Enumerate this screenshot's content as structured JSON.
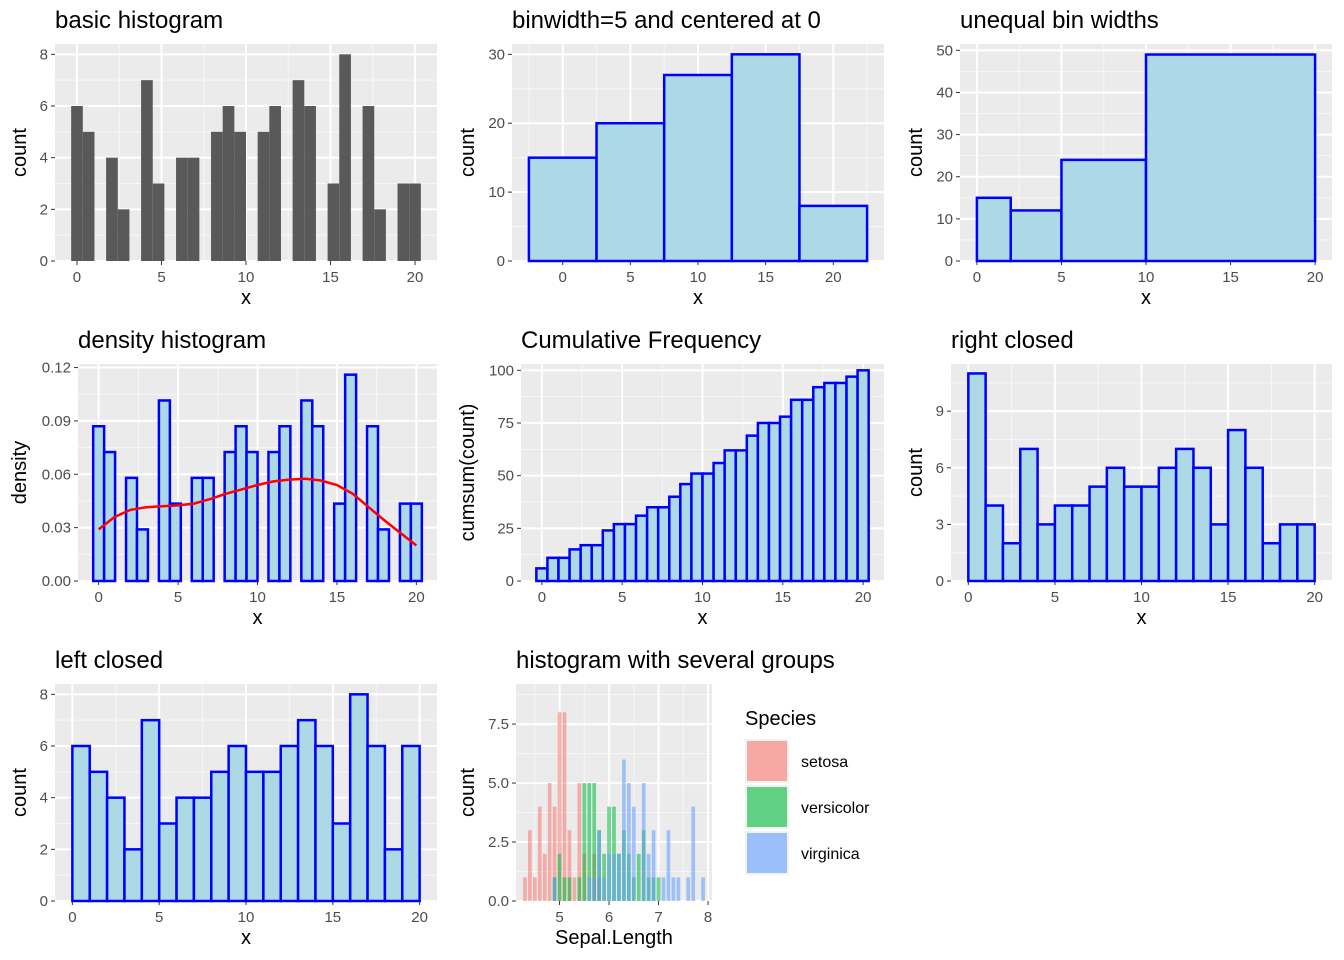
{
  "chart_data": [
    {
      "id": "basic",
      "type": "bar",
      "title": "basic histogram",
      "xlabel": "x",
      "ylabel": "count",
      "xlim": [
        -1.3,
        21.3
      ],
      "ylim": [
        0,
        8.4
      ],
      "xticks": [
        0,
        5,
        10,
        15,
        20
      ],
      "yticks": [
        0,
        2,
        4,
        6,
        8
      ],
      "ytick_labels": [
        "0",
        "2",
        "4",
        "6",
        "8"
      ],
      "style": "plain",
      "bins": [
        [
          -0.345,
          0.345,
          6
        ],
        [
          0.345,
          1.034,
          5
        ],
        [
          1.724,
          2.414,
          4
        ],
        [
          2.414,
          3.103,
          2
        ],
        [
          3.793,
          4.483,
          7
        ],
        [
          4.483,
          5.172,
          3
        ],
        [
          5.862,
          6.552,
          4
        ],
        [
          6.552,
          7.241,
          4
        ],
        [
          7.931,
          8.621,
          5
        ],
        [
          8.621,
          9.31,
          6
        ],
        [
          9.31,
          10.0,
          5
        ],
        [
          10.69,
          11.38,
          5
        ],
        [
          11.38,
          12.069,
          6
        ],
        [
          12.759,
          13.448,
          7
        ],
        [
          13.448,
          14.138,
          6
        ],
        [
          14.828,
          15.517,
          3
        ],
        [
          15.517,
          16.207,
          8
        ],
        [
          16.897,
          17.586,
          6
        ],
        [
          17.586,
          18.276,
          2
        ],
        [
          18.966,
          19.655,
          3
        ],
        [
          19.655,
          20.345,
          3
        ]
      ]
    },
    {
      "id": "binwidth",
      "type": "bar",
      "title": "binwidth=5 and centered at 0",
      "xlabel": "x",
      "ylabel": "count",
      "xlim": [
        -3.75,
        23.75
      ],
      "ylim": [
        0,
        31.5
      ],
      "xticks": [
        0,
        5,
        10,
        15,
        20
      ],
      "yticks": [
        0,
        10,
        20,
        30
      ],
      "ytick_labels": [
        "0",
        "10",
        "20",
        "30"
      ],
      "style": "outlined",
      "bins": [
        [
          -2.5,
          2.5,
          15
        ],
        [
          2.5,
          7.5,
          20
        ],
        [
          7.5,
          12.5,
          27
        ],
        [
          12.5,
          17.5,
          30
        ],
        [
          17.5,
          22.5,
          8
        ]
      ]
    },
    {
      "id": "unequal",
      "type": "bar",
      "title": "unequal bin widths",
      "xlabel": "x",
      "ylabel": "count",
      "xlim": [
        -1,
        21
      ],
      "ylim": [
        0,
        51.5
      ],
      "xticks": [
        0,
        5,
        10,
        15,
        20
      ],
      "yticks": [
        0,
        10,
        20,
        30,
        40,
        50
      ],
      "ytick_labels": [
        "0",
        "10",
        "20",
        "30",
        "40",
        "50"
      ],
      "style": "outlined",
      "bins": [
        [
          0,
          2,
          15
        ],
        [
          2,
          5,
          12
        ],
        [
          5,
          10,
          24
        ],
        [
          10,
          20,
          49
        ]
      ]
    },
    {
      "id": "density",
      "type": "bar",
      "title": "density histogram",
      "xlabel": "x",
      "ylabel": "density",
      "xlim": [
        -1.3,
        21.3
      ],
      "ylim": [
        0,
        0.122
      ],
      "xticks": [
        0,
        5,
        10,
        15,
        20
      ],
      "yticks": [
        0,
        0.03,
        0.06,
        0.09,
        0.12
      ],
      "ytick_labels": [
        "0.00",
        "0.03",
        "0.06",
        "0.09",
        "0.12"
      ],
      "style": "outlined",
      "bins": [
        [
          -0.345,
          0.345,
          0.087
        ],
        [
          0.345,
          1.034,
          0.0725
        ],
        [
          1.034,
          1.724,
          0.0
        ],
        [
          1.724,
          2.414,
          0.058
        ],
        [
          2.414,
          3.103,
          0.029
        ],
        [
          3.103,
          3.793,
          0.0
        ],
        [
          3.793,
          4.483,
          0.1015
        ],
        [
          4.483,
          5.172,
          0.0435
        ],
        [
          5.172,
          5.862,
          0.0
        ],
        [
          5.862,
          6.552,
          0.058
        ],
        [
          6.552,
          7.241,
          0.058
        ],
        [
          7.241,
          7.931,
          0.0
        ],
        [
          7.931,
          8.621,
          0.0725
        ],
        [
          8.621,
          9.31,
          0.087
        ],
        [
          9.31,
          10.0,
          0.0725
        ],
        [
          10.0,
          10.69,
          0.0
        ],
        [
          10.69,
          11.38,
          0.0725
        ],
        [
          11.38,
          12.069,
          0.087
        ],
        [
          12.069,
          12.759,
          0.0
        ],
        [
          12.759,
          13.448,
          0.1015
        ],
        [
          13.448,
          14.138,
          0.087
        ],
        [
          14.138,
          14.828,
          0.0
        ],
        [
          14.828,
          15.517,
          0.0435
        ],
        [
          15.517,
          16.207,
          0.116
        ],
        [
          16.207,
          16.897,
          0.0
        ],
        [
          16.897,
          17.586,
          0.087
        ],
        [
          17.586,
          18.276,
          0.029
        ],
        [
          18.276,
          18.966,
          0.0
        ],
        [
          18.966,
          19.655,
          0.0435
        ],
        [
          19.655,
          20.345,
          0.0435
        ]
      ],
      "density_curve": {
        "x": [
          0,
          1,
          2,
          3,
          4,
          5,
          6,
          7,
          8,
          9,
          10,
          11,
          12,
          13,
          14,
          15,
          16,
          17,
          18,
          19,
          20
        ],
        "y": [
          0.029,
          0.036,
          0.04,
          0.0415,
          0.042,
          0.0425,
          0.0435,
          0.046,
          0.049,
          0.0515,
          0.054,
          0.056,
          0.057,
          0.0575,
          0.0565,
          0.054,
          0.049,
          0.0415,
          0.034,
          0.027,
          0.02
        ]
      }
    },
    {
      "id": "cumulative",
      "type": "bar",
      "title": "Cumulative Frequency",
      "xlabel": "x",
      "ylabel": "cumsum(count)",
      "xlim": [
        -1.3,
        21.3
      ],
      "ylim": [
        0,
        103
      ],
      "xticks": [
        0,
        5,
        10,
        15,
        20
      ],
      "yticks": [
        0,
        25,
        50,
        75,
        100
      ],
      "ytick_labels": [
        "0",
        "25",
        "50",
        "75",
        "100"
      ],
      "style": "outlined",
      "bins": [
        [
          -0.345,
          0.345,
          6
        ],
        [
          0.345,
          1.034,
          11
        ],
        [
          1.034,
          1.724,
          11
        ],
        [
          1.724,
          2.414,
          15
        ],
        [
          2.414,
          3.103,
          17
        ],
        [
          3.103,
          3.793,
          17
        ],
        [
          3.793,
          4.483,
          24
        ],
        [
          4.483,
          5.172,
          27
        ],
        [
          5.172,
          5.862,
          27
        ],
        [
          5.862,
          6.552,
          31
        ],
        [
          6.552,
          7.241,
          35
        ],
        [
          7.241,
          7.931,
          35
        ],
        [
          7.931,
          8.621,
          40
        ],
        [
          8.621,
          9.31,
          46
        ],
        [
          9.31,
          10.0,
          51
        ],
        [
          10.0,
          10.69,
          51
        ],
        [
          10.69,
          11.38,
          56
        ],
        [
          11.38,
          12.069,
          62
        ],
        [
          12.069,
          12.759,
          62
        ],
        [
          12.759,
          13.448,
          69
        ],
        [
          13.448,
          14.138,
          75
        ],
        [
          14.138,
          14.828,
          75
        ],
        [
          14.828,
          15.517,
          78
        ],
        [
          15.517,
          16.207,
          86
        ],
        [
          16.207,
          16.897,
          86
        ],
        [
          16.897,
          17.586,
          92
        ],
        [
          17.586,
          18.276,
          94
        ],
        [
          18.276,
          18.966,
          94
        ],
        [
          18.966,
          19.655,
          97
        ],
        [
          19.655,
          20.345,
          100
        ]
      ]
    },
    {
      "id": "rightclosed",
      "type": "bar",
      "title": "right closed",
      "xlabel": "x",
      "ylabel": "count",
      "xlim": [
        -1,
        21
      ],
      "ylim": [
        0,
        11.5
      ],
      "xticks": [
        0,
        5,
        10,
        15,
        20
      ],
      "yticks": [
        0,
        3,
        6,
        9
      ],
      "ytick_labels": [
        "0",
        "3",
        "6",
        "9"
      ],
      "style": "outlined",
      "bins": [
        [
          0,
          1,
          11
        ],
        [
          1,
          2,
          4
        ],
        [
          2,
          3,
          2
        ],
        [
          3,
          4,
          7
        ],
        [
          4,
          5,
          3
        ],
        [
          5,
          6,
          4
        ],
        [
          6,
          7,
          4
        ],
        [
          7,
          8,
          5
        ],
        [
          8,
          9,
          6
        ],
        [
          9,
          10,
          5
        ],
        [
          10,
          11,
          5
        ],
        [
          11,
          12,
          6
        ],
        [
          12,
          13,
          7
        ],
        [
          13,
          14,
          6
        ],
        [
          14,
          15,
          3
        ],
        [
          15,
          16,
          8
        ],
        [
          16,
          17,
          6
        ],
        [
          17,
          18,
          2
        ],
        [
          18,
          19,
          3
        ],
        [
          19,
          20,
          3
        ]
      ]
    },
    {
      "id": "leftclosed",
      "type": "bar",
      "title": "left closed",
      "xlabel": "x",
      "ylabel": "count",
      "xlim": [
        -1,
        21
      ],
      "ylim": [
        0,
        8.4
      ],
      "xticks": [
        0,
        5,
        10,
        15,
        20
      ],
      "yticks": [
        0,
        2,
        4,
        6,
        8
      ],
      "ytick_labels": [
        "0",
        "2",
        "4",
        "6",
        "8"
      ],
      "style": "outlined",
      "bins": [
        [
          0,
          1,
          6
        ],
        [
          1,
          2,
          5
        ],
        [
          2,
          3,
          4
        ],
        [
          3,
          4,
          2
        ],
        [
          4,
          5,
          7
        ],
        [
          5,
          6,
          3
        ],
        [
          6,
          7,
          4
        ],
        [
          7,
          8,
          4
        ],
        [
          8,
          9,
          5
        ],
        [
          9,
          10,
          6
        ],
        [
          10,
          11,
          5
        ],
        [
          11,
          12,
          5
        ],
        [
          12,
          13,
          6
        ],
        [
          13,
          14,
          7
        ],
        [
          14,
          15,
          6
        ],
        [
          15,
          16,
          3
        ],
        [
          16,
          17,
          8
        ],
        [
          17,
          18,
          6
        ],
        [
          18,
          19,
          2
        ],
        [
          19,
          20,
          6
        ]
      ]
    },
    {
      "id": "groups",
      "type": "bar",
      "title": "histogram with several groups",
      "xlabel": "Sepal.Length",
      "ylabel": "count",
      "xlim": [
        4.12,
        8.08
      ],
      "ylim": [
        0,
        9.2
      ],
      "xticks": [
        5,
        6,
        7,
        8
      ],
      "yticks": [
        0,
        2.5,
        5,
        7.5
      ],
      "ytick_labels": [
        "0.0",
        "2.5",
        "5.0",
        "7.5"
      ],
      "style": "groups",
      "legend": {
        "title": "Species",
        "position": "right",
        "items": [
          {
            "label": "setosa",
            "color": "#f8766d"
          },
          {
            "label": "versicolor",
            "color": "#00ba38"
          },
          {
            "label": "virginica",
            "color": "#619cff"
          }
        ]
      },
      "series": [
        {
          "name": "setosa",
          "color": "#f8766d",
          "x": [
            4.3,
            4.4,
            4.5,
            4.6,
            4.7,
            4.8,
            4.9,
            5.0,
            5.1,
            5.2,
            5.3,
            5.4,
            5.5,
            5.7,
            5.8
          ],
          "values": [
            1,
            3,
            1,
            4,
            2,
            5,
            4,
            8,
            8,
            3,
            1,
            5,
            2,
            2,
            1
          ]
        },
        {
          "name": "versicolor",
          "color": "#00ba38",
          "x": [
            4.9,
            5.0,
            5.1,
            5.2,
            5.4,
            5.5,
            5.6,
            5.7,
            5.8,
            5.9,
            6.0,
            6.1,
            6.2,
            6.3,
            6.4,
            6.5,
            6.6,
            6.7,
            6.8,
            6.9,
            7.0
          ],
          "values": [
            1,
            2,
            1,
            1,
            1,
            5,
            5,
            5,
            3,
            2,
            4,
            4,
            2,
            3,
            2,
            1,
            2,
            3,
            1,
            1,
            1
          ]
        },
        {
          "name": "virginica",
          "color": "#619cff",
          "x": [
            4.9,
            5.6,
            5.7,
            5.8,
            5.9,
            6.0,
            6.1,
            6.2,
            6.3,
            6.4,
            6.5,
            6.7,
            6.8,
            6.9,
            7.1,
            7.2,
            7.3,
            7.4,
            7.6,
            7.7,
            7.9
          ],
          "values": [
            1,
            1,
            1,
            3,
            1,
            2,
            2,
            2,
            6,
            5,
            4,
            5,
            2,
            3,
            1,
            3,
            1,
            1,
            1,
            4,
            1
          ]
        }
      ]
    }
  ]
}
